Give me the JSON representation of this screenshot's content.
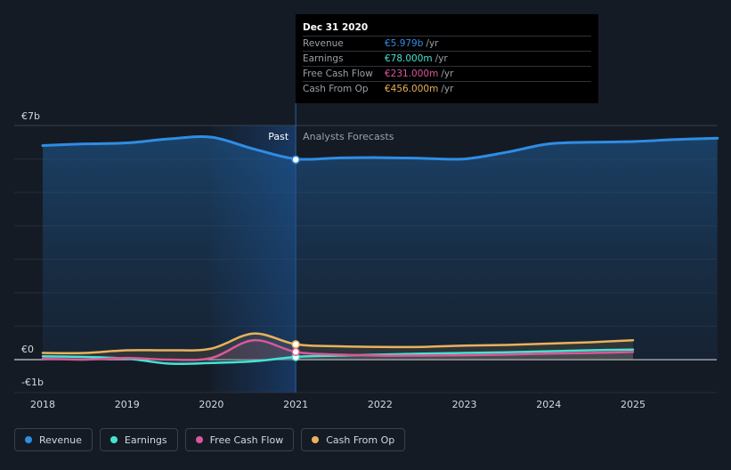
{
  "chart_data": {
    "type": "area",
    "x_range": [
      2018,
      2026
    ],
    "ylim": [
      -1,
      7
    ],
    "y_tick_labels": [
      {
        "value": 7,
        "label": "€7b"
      },
      {
        "value": 0,
        "label": "€0"
      },
      {
        "value": -1,
        "label": "-€1b"
      }
    ],
    "x_tick_labels": [
      "2018",
      "2019",
      "2020",
      "2021",
      "2022",
      "2023",
      "2024",
      "2025"
    ],
    "x_tick_values": [
      2018,
      2019,
      2020,
      2021,
      2022,
      2023,
      2024,
      2025
    ],
    "past_label": "Past",
    "forecast_label": "Analysts Forecasts",
    "divider_x": 2021.0,
    "highlight_start": 2020.0,
    "series": [
      {
        "name": "Revenue",
        "color": "#2f8de4",
        "x": [
          2018.0,
          2018.5,
          2019.0,
          2019.5,
          2020.0,
          2020.5,
          2021.0,
          2021.5,
          2022.0,
          2022.5,
          2023.0,
          2023.5,
          2024.0,
          2024.5,
          2025.0,
          2025.5,
          2026.0
        ],
        "values": [
          6.4,
          6.45,
          6.48,
          6.6,
          6.65,
          6.3,
          6.0,
          6.03,
          6.04,
          6.02,
          6.0,
          6.2,
          6.45,
          6.5,
          6.52,
          6.58,
          6.62
        ]
      },
      {
        "name": "Earnings",
        "color": "#44e3d0",
        "x": [
          2018.0,
          2018.5,
          2019.0,
          2019.5,
          2020.0,
          2020.5,
          2021.0,
          2021.5,
          2022.0,
          2022.5,
          2023.0,
          2023.5,
          2024.0,
          2024.5,
          2025.0
        ],
        "values": [
          0.1,
          0.08,
          0.03,
          -0.12,
          -0.1,
          -0.05,
          0.08,
          0.12,
          0.15,
          0.18,
          0.2,
          0.22,
          0.25,
          0.28,
          0.3
        ]
      },
      {
        "name": "Free Cash Flow",
        "color": "#d9589a",
        "x": [
          2018.0,
          2018.5,
          2019.0,
          2019.5,
          2020.0,
          2020.5,
          2021.0,
          2021.5,
          2022.0,
          2022.5,
          2023.0,
          2023.5,
          2024.0,
          2024.5,
          2025.0
        ],
        "values": [
          0.03,
          0.0,
          0.05,
          0.0,
          0.05,
          0.58,
          0.23,
          0.15,
          0.12,
          0.12,
          0.13,
          0.15,
          0.18,
          0.2,
          0.23
        ]
      },
      {
        "name": "Cash From Op",
        "color": "#e9b25c",
        "x": [
          2018.0,
          2018.5,
          2019.0,
          2019.5,
          2020.0,
          2020.5,
          2021.0,
          2021.5,
          2022.0,
          2022.5,
          2023.0,
          2023.5,
          2024.0,
          2024.5,
          2025.0
        ],
        "values": [
          0.2,
          0.2,
          0.28,
          0.28,
          0.33,
          0.78,
          0.46,
          0.4,
          0.38,
          0.38,
          0.42,
          0.44,
          0.48,
          0.52,
          0.58
        ]
      }
    ],
    "highlight_points": [
      {
        "series": "Revenue",
        "x": 2021.0,
        "value": 5.979
      },
      {
        "series": "Earnings",
        "x": 2021.0,
        "value": 0.078
      },
      {
        "series": "Free Cash Flow",
        "x": 2021.0,
        "value": 0.231
      },
      {
        "series": "Cash From Op",
        "x": 2021.0,
        "value": 0.456
      }
    ]
  },
  "tooltip": {
    "date": "Dec 31 2020",
    "rows": [
      {
        "label": "Revenue",
        "value": "€5.979b",
        "unit": "/yr",
        "color": "#2f8de4"
      },
      {
        "label": "Earnings",
        "value": "€78.000m",
        "unit": "/yr",
        "color": "#44e3d0"
      },
      {
        "label": "Free Cash Flow",
        "value": "€231.000m",
        "unit": "/yr",
        "color": "#d9589a"
      },
      {
        "label": "Cash From Op",
        "value": "€456.000m",
        "unit": "/yr",
        "color": "#e9b25c"
      }
    ]
  },
  "legend": [
    {
      "label": "Revenue",
      "color": "#2f8de4"
    },
    {
      "label": "Earnings",
      "color": "#44e3d0"
    },
    {
      "label": "Free Cash Flow",
      "color": "#d9589a"
    },
    {
      "label": "Cash From Op",
      "color": "#e9b25c"
    }
  ]
}
